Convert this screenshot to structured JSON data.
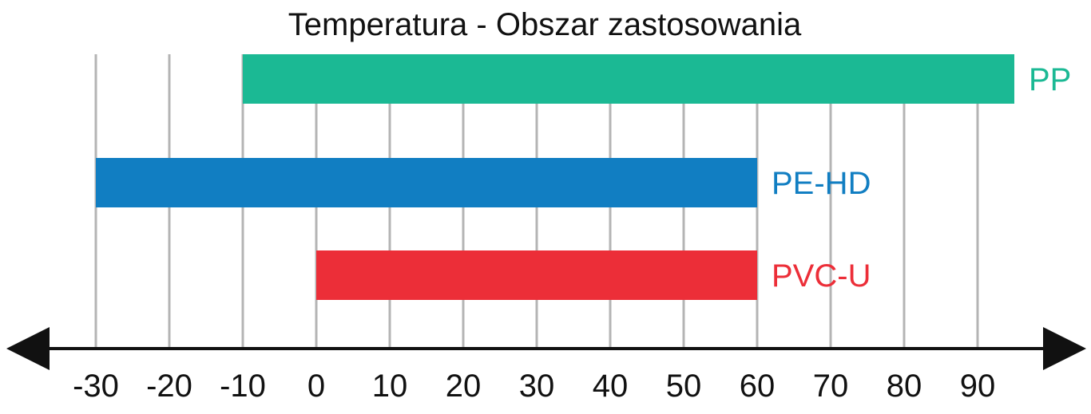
{
  "chart_data": {
    "type": "bar",
    "orientation": "horizontal-range",
    "title": "Temperatura - Obszar zastosowania",
    "xlabel": "",
    "ylabel": "",
    "xlim": [
      -30,
      90
    ],
    "xticks": [
      "-30",
      "-20",
      "-10",
      "0",
      "10",
      "20",
      "30",
      "40",
      "50",
      "60",
      "70",
      "80",
      "90"
    ],
    "grid": true,
    "series": [
      {
        "name": "PP",
        "start": -10,
        "end": 95,
        "color": "#1bb994"
      },
      {
        "name": "PE-HD",
        "start": -30,
        "end": 60,
        "color": "#117ec2"
      },
      {
        "name": "PVC-U",
        "start": 0,
        "end": 60,
        "color": "#ec2e38"
      }
    ],
    "axis_color": "#111111",
    "grid_color": "#b4b4b4"
  }
}
